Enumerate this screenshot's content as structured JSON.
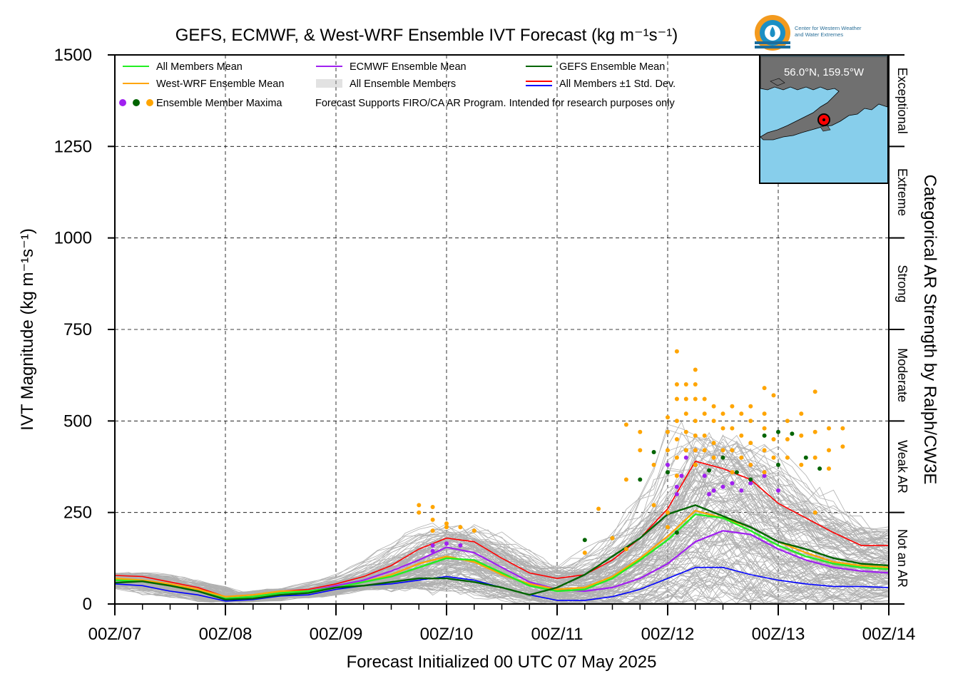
{
  "chart_data": {
    "type": "line",
    "title": "GEFS, ECMWF, & West-WRF Ensemble IVT Forecast (kg m⁻¹s⁻¹)",
    "xlabel": "Forecast Initialized 00 UTC 07 May 2025",
    "ylabel": "IVT Magnitude (kg m⁻¹s⁻¹)",
    "right_label": "Categorical AR Strength by Ralph/CW3E",
    "ylim": [
      0,
      1500
    ],
    "xlim_hours": [
      0,
      168
    ],
    "x_ticks": [
      "00Z/07",
      "00Z/08",
      "00Z/09",
      "00Z/10",
      "00Z/11",
      "00Z/12",
      "00Z/13",
      "00Z/14"
    ],
    "y_ticks": [
      0,
      250,
      500,
      750,
      1000,
      1250,
      1500
    ],
    "grid": true,
    "categories_ar": [
      {
        "label": "Not an AR",
        "from": 0,
        "to": 250
      },
      {
        "label": "Weak AR",
        "from": 250,
        "to": 500
      },
      {
        "label": "Moderate",
        "from": 500,
        "to": 750
      },
      {
        "label": "Strong",
        "from": 750,
        "to": 1000
      },
      {
        "label": "Extreme",
        "from": 1000,
        "to": 1250
      },
      {
        "label": "Exceptional",
        "from": 1250,
        "to": 1500
      }
    ],
    "legend": {
      "placement": "top-left",
      "entries": [
        {
          "label": "All Members Mean",
          "color": "#22ee22",
          "kind": "line"
        },
        {
          "label": "ECMWF Ensemble Mean",
          "color": "#a020f0",
          "kind": "line"
        },
        {
          "label": "GEFS Ensemble Mean",
          "color": "#006400",
          "kind": "line"
        },
        {
          "label": "West-WRF Ensemble Mean",
          "color": "#ffa500",
          "kind": "line"
        },
        {
          "label": "All Ensemble Members",
          "color": "#b0b0b0",
          "kind": "multiline"
        },
        {
          "label": "All Members ±1 Std. Dev.",
          "color": "#ff0000",
          "color2": "#0000ff",
          "kind": "dualline"
        },
        {
          "label": "Ensemble Member Maxima",
          "colors": [
            "#a020f0",
            "#006400",
            "#ffa500"
          ],
          "kind": "dots"
        }
      ],
      "note": "Forecast Supports FIRO/CA AR Program. Intended for research purposes only"
    },
    "series": [
      {
        "name": "All Members Mean",
        "color": "#22ee22",
        "width": 2.4,
        "x": [
          0,
          6,
          12,
          18,
          24,
          30,
          36,
          42,
          48,
          54,
          60,
          66,
          72,
          78,
          84,
          90,
          96,
          102,
          108,
          114,
          120,
          126,
          132,
          138,
          144,
          150,
          156,
          162,
          168
        ],
        "values": [
          65,
          62,
          50,
          35,
          15,
          20,
          30,
          35,
          45,
          60,
          75,
          100,
          125,
          120,
          85,
          50,
          35,
          40,
          70,
          120,
          175,
          245,
          235,
          200,
          160,
          130,
          110,
          100,
          95
        ]
      },
      {
        "name": "ECMWF Ensemble Mean",
        "color": "#a020f0",
        "width": 2.2,
        "x": [
          0,
          6,
          12,
          18,
          24,
          30,
          36,
          42,
          48,
          54,
          60,
          66,
          72,
          78,
          84,
          90,
          96,
          102,
          108,
          114,
          120,
          126,
          132,
          138,
          144,
          150,
          156,
          162,
          168
        ],
        "values": [
          65,
          62,
          50,
          35,
          15,
          20,
          30,
          35,
          50,
          65,
          90,
          120,
          155,
          140,
          100,
          60,
          40,
          35,
          45,
          70,
          110,
          170,
          200,
          190,
          150,
          120,
          100,
          90,
          85
        ]
      },
      {
        "name": "GEFS Ensemble Mean",
        "color": "#006400",
        "width": 2.4,
        "x": [
          0,
          6,
          12,
          18,
          24,
          30,
          36,
          42,
          48,
          54,
          60,
          66,
          72,
          78,
          84,
          90,
          96,
          102,
          108,
          114,
          120,
          126,
          132,
          138,
          144,
          150,
          156,
          162,
          168
        ],
        "values": [
          58,
          62,
          50,
          35,
          12,
          15,
          25,
          30,
          45,
          50,
          60,
          70,
          70,
          60,
          45,
          25,
          45,
          80,
          130,
          180,
          245,
          270,
          240,
          210,
          170,
          150,
          125,
          110,
          105
        ]
      },
      {
        "name": "West-WRF Ensemble Mean",
        "color": "#ffa500",
        "width": 2.2,
        "x": [
          0,
          6,
          12,
          18,
          24,
          30,
          36,
          42,
          48,
          54,
          60,
          66,
          72,
          78,
          84,
          90,
          96,
          102,
          108,
          114,
          120,
          126,
          132,
          138,
          144,
          150,
          156,
          162,
          168
        ],
        "values": [
          70,
          65,
          55,
          40,
          20,
          25,
          35,
          35,
          45,
          60,
          80,
          110,
          130,
          115,
          80,
          55,
          40,
          45,
          75,
          125,
          185,
          255,
          235,
          210,
          170,
          140,
          115,
          105,
          100
        ]
      },
      {
        "name": "All Members +1 Std. Dev.",
        "color": "#ff0000",
        "width": 1.6,
        "x": [
          0,
          6,
          12,
          18,
          24,
          30,
          36,
          42,
          48,
          54,
          60,
          66,
          72,
          78,
          84,
          90,
          96,
          102,
          108,
          114,
          120,
          126,
          132,
          138,
          144,
          150,
          156,
          162,
          168
        ],
        "values": [
          78,
          75,
          60,
          45,
          20,
          25,
          35,
          40,
          55,
          75,
          105,
          150,
          180,
          170,
          125,
          85,
          70,
          80,
          120,
          180,
          260,
          390,
          370,
          340,
          275,
          235,
          195,
          160,
          160
        ]
      },
      {
        "name": "All Members -1 Std. Dev.",
        "color": "#0000ff",
        "width": 1.6,
        "x": [
          0,
          6,
          12,
          18,
          24,
          30,
          36,
          42,
          48,
          54,
          60,
          66,
          72,
          78,
          84,
          90,
          96,
          102,
          108,
          114,
          120,
          126,
          132,
          138,
          144,
          150,
          156,
          162,
          168
        ],
        "values": [
          55,
          50,
          35,
          25,
          8,
          12,
          22,
          25,
          40,
          50,
          55,
          65,
          75,
          65,
          45,
          25,
          10,
          10,
          20,
          40,
          70,
          100,
          100,
          80,
          65,
          55,
          48,
          48,
          45
        ]
      }
    ],
    "ensemble_members_note": "Hundreds of individual member traces drawn as thin grey lines; envelope spans roughly 0-690 with peak near 00Z/12.",
    "maxima_points": {
      "ecmwf": {
        "color": "#a020f0",
        "points": [
          [
            69,
            145
          ],
          [
            69,
            160
          ],
          [
            72,
            165
          ],
          [
            75,
            160
          ],
          [
            120,
            380
          ],
          [
            122,
            300
          ],
          [
            122,
            320
          ],
          [
            123,
            350
          ],
          [
            124,
            400
          ],
          [
            126,
            420
          ],
          [
            128,
            350
          ],
          [
            129,
            300
          ],
          [
            130,
            310
          ],
          [
            132,
            320
          ],
          [
            134,
            330
          ],
          [
            136,
            310
          ],
          [
            138,
            330
          ],
          [
            138,
            380
          ],
          [
            141,
            350
          ],
          [
            141,
            360
          ],
          [
            144,
            310
          ]
        ]
      },
      "gefs": {
        "color": "#006400",
        "points": [
          [
            102,
            175
          ],
          [
            108,
            180
          ],
          [
            114,
            340
          ],
          [
            117,
            415
          ],
          [
            120,
            360
          ],
          [
            122,
            195
          ],
          [
            124,
            420
          ],
          [
            126,
            380
          ],
          [
            129,
            365
          ],
          [
            132,
            400
          ],
          [
            135,
            360
          ],
          [
            138,
            340
          ],
          [
            141,
            460
          ],
          [
            144,
            470
          ],
          [
            144,
            380
          ],
          [
            147,
            465
          ],
          [
            150,
            400
          ],
          [
            153,
            370
          ]
        ]
      },
      "wwrf": {
        "color": "#ffa500",
        "points": [
          [
            66,
            270
          ],
          [
            66,
            250
          ],
          [
            69,
            265
          ],
          [
            69,
            230
          ],
          [
            69,
            200
          ],
          [
            72,
            210
          ],
          [
            72,
            220
          ],
          [
            75,
            210
          ],
          [
            78,
            200
          ],
          [
            102,
            140
          ],
          [
            105,
            260
          ],
          [
            108,
            180
          ],
          [
            111,
            150
          ],
          [
            111,
            340
          ],
          [
            111,
            490
          ],
          [
            114,
            420
          ],
          [
            114,
            470
          ],
          [
            117,
            380
          ],
          [
            117,
            270
          ],
          [
            120,
            510
          ],
          [
            120,
            470
          ],
          [
            120,
            420
          ],
          [
            120,
            250
          ],
          [
            120,
            210
          ],
          [
            122,
            690
          ],
          [
            122,
            600
          ],
          [
            122,
            560
          ],
          [
            122,
            500
          ],
          [
            122,
            450
          ],
          [
            122,
            400
          ],
          [
            122,
            350
          ],
          [
            124,
            600
          ],
          [
            124,
            560
          ],
          [
            124,
            520
          ],
          [
            124,
            470
          ],
          [
            124,
            420
          ],
          [
            126,
            640
          ],
          [
            126,
            600
          ],
          [
            126,
            560
          ],
          [
            126,
            500
          ],
          [
            126,
            460
          ],
          [
            126,
            420
          ],
          [
            126,
            380
          ],
          [
            128,
            560
          ],
          [
            128,
            520
          ],
          [
            128,
            460
          ],
          [
            128,
            420
          ],
          [
            130,
            540
          ],
          [
            130,
            500
          ],
          [
            130,
            440
          ],
          [
            130,
            400
          ],
          [
            132,
            520
          ],
          [
            132,
            480
          ],
          [
            132,
            420
          ],
          [
            134,
            540
          ],
          [
            134,
            480
          ],
          [
            134,
            420
          ],
          [
            134,
            360
          ],
          [
            136,
            520
          ],
          [
            136,
            460
          ],
          [
            136,
            400
          ],
          [
            138,
            540
          ],
          [
            138,
            500
          ],
          [
            138,
            440
          ],
          [
            138,
            380
          ],
          [
            141,
            590
          ],
          [
            141,
            520
          ],
          [
            141,
            480
          ],
          [
            141,
            420
          ],
          [
            141,
            360
          ],
          [
            143,
            570
          ],
          [
            143,
            450
          ],
          [
            143,
            400
          ],
          [
            146,
            500
          ],
          [
            146,
            450
          ],
          [
            146,
            400
          ],
          [
            149,
            520
          ],
          [
            149,
            460
          ],
          [
            149,
            380
          ],
          [
            152,
            580
          ],
          [
            152,
            470
          ],
          [
            152,
            400
          ],
          [
            152,
            250
          ],
          [
            155,
            480
          ],
          [
            155,
            420
          ],
          [
            155,
            370
          ],
          [
            158,
            480
          ],
          [
            158,
            430
          ]
        ]
      }
    },
    "map_inset": {
      "label": "56.0°N, 159.5°W"
    },
    "logo_text": [
      "Center for Western Weather",
      "and Water Extremes"
    ]
  }
}
